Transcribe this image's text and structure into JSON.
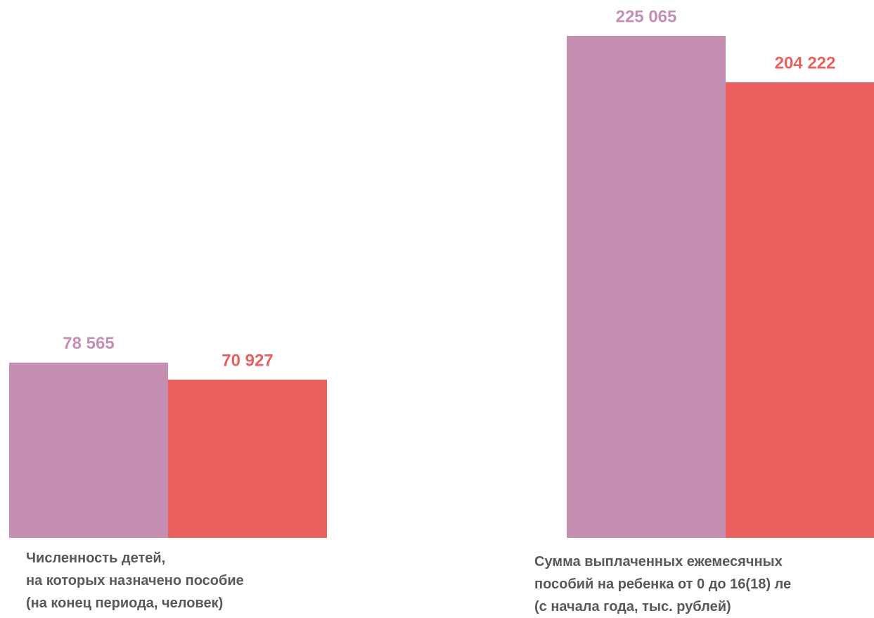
{
  "chart_data": {
    "type": "bar",
    "categories": [
      "Численность детей,\nна которых назначено пособие\n(на конец периода, человек)",
      "Сумма выплаченных ежемесячных\nпособий на ребенка от 0 до 16(18) ле\n(с начала года, тыс. рублей)"
    ],
    "series": [
      {
        "color": "#c48fb0",
        "values": [
          78565,
          225065
        ],
        "value_labels": [
          "78 565",
          "225 065"
        ]
      },
      {
        "color": "#eb5f5f",
        "values": [
          70927,
          204222
        ],
        "value_labels": [
          "70 927",
          "204 222"
        ]
      }
    ]
  }
}
